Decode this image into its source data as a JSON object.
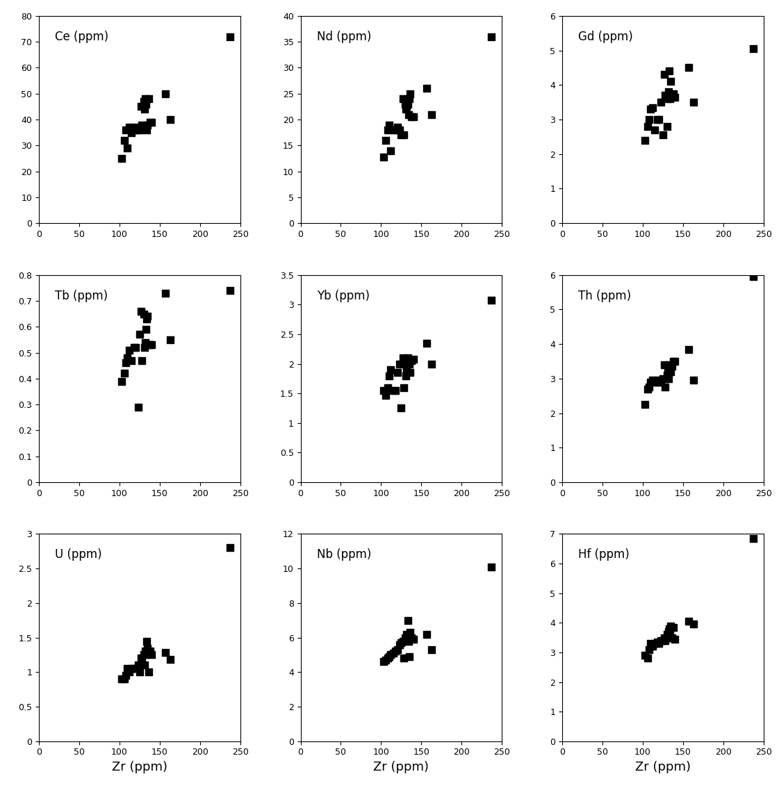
{
  "chart_data": [
    {
      "type": "scatter",
      "title": "Ce (ppm)",
      "color": "#000000",
      "marker": "square",
      "x": [
        103,
        106,
        108,
        110,
        112,
        115,
        118,
        120,
        123,
        125,
        127,
        128,
        130,
        131,
        132,
        133,
        134,
        135,
        136,
        138,
        140,
        157,
        163,
        237
      ],
      "values": [
        25,
        32,
        36,
        29,
        37,
        35,
        36,
        37,
        36,
        36,
        45,
        38,
        47,
        44,
        48,
        46,
        36,
        38,
        48,
        39,
        39,
        50,
        40,
        72
      ],
      "xlim": [
        0,
        250
      ],
      "xticks": [
        0,
        50,
        100,
        150,
        200,
        250
      ],
      "ylim": [
        0,
        80
      ],
      "yticks": [
        0,
        10,
        20,
        30,
        40,
        50,
        60,
        70,
        80
      ]
    },
    {
      "type": "scatter",
      "title": "Nd (ppm)",
      "color": "#000000",
      "marker": "square",
      "x": [
        103,
        106,
        108,
        110,
        112,
        115,
        118,
        120,
        123,
        125,
        127,
        128,
        130,
        131,
        132,
        133,
        134,
        135,
        136,
        138,
        140,
        157,
        163,
        237
      ],
      "values": [
        12.7,
        16,
        18,
        19,
        14,
        18,
        18,
        18.5,
        18,
        17,
        24,
        17,
        23,
        22,
        22.5,
        23,
        21,
        24,
        25,
        20.6,
        20.6,
        26,
        21,
        36
      ],
      "xlim": [
        0,
        250
      ],
      "xticks": [
        0,
        50,
        100,
        150,
        200,
        250
      ],
      "ylim": [
        0,
        40
      ],
      "yticks": [
        0,
        5,
        10,
        15,
        20,
        25,
        30,
        35,
        40
      ]
    },
    {
      "type": "scatter",
      "title": "Gd (ppm)",
      "color": "#000000",
      "marker": "square",
      "x": [
        103,
        106,
        108,
        110,
        112,
        115,
        118,
        120,
        123,
        125,
        127,
        128,
        130,
        131,
        132,
        133,
        134,
        135,
        136,
        138,
        140,
        157,
        163,
        237
      ],
      "values": [
        2.4,
        2.8,
        3.0,
        3.3,
        3.35,
        2.7,
        3.0,
        3.0,
        3.5,
        2.55,
        4.3,
        3.7,
        2.8,
        3.6,
        3.8,
        4.4,
        3.6,
        4.1,
        3.7,
        3.75,
        3.65,
        4.5,
        3.5,
        5.05
      ],
      "xlim": [
        0,
        250
      ],
      "xticks": [
        0,
        50,
        100,
        150,
        200,
        250
      ],
      "ylim": [
        0,
        6
      ],
      "yticks": [
        0,
        1,
        2,
        3,
        4,
        5,
        6
      ]
    },
    {
      "type": "scatter",
      "title": "Tb (ppm)",
      "color": "#000000",
      "marker": "square",
      "x": [
        103,
        106,
        108,
        110,
        112,
        115,
        118,
        120,
        123,
        125,
        127,
        128,
        130,
        131,
        132,
        133,
        134,
        135,
        136,
        138,
        140,
        157,
        163,
        237
      ],
      "values": [
        0.39,
        0.42,
        0.46,
        0.48,
        0.51,
        0.47,
        0.52,
        0.52,
        0.29,
        0.57,
        0.66,
        0.47,
        0.65,
        0.52,
        0.54,
        0.59,
        0.63,
        0.64,
        0.53,
        0.53,
        0.53,
        0.73,
        0.55,
        0.74
      ],
      "xlim": [
        0,
        250
      ],
      "xticks": [
        0,
        50,
        100,
        150,
        200,
        250
      ],
      "ylim": [
        0,
        0.8
      ],
      "yticks": [
        0,
        0.1,
        0.2,
        0.3,
        0.4,
        0.5,
        0.6,
        0.7,
        0.8
      ]
    },
    {
      "type": "scatter",
      "title": "Yb (ppm)",
      "color": "#000000",
      "marker": "square",
      "x": [
        103,
        106,
        108,
        110,
        112,
        115,
        118,
        120,
        123,
        125,
        127,
        128,
        130,
        131,
        132,
        133,
        134,
        135,
        136,
        138,
        140,
        157,
        163,
        237
      ],
      "values": [
        1.55,
        1.47,
        1.6,
        1.8,
        1.9,
        1.55,
        1.55,
        1.85,
        2.0,
        1.25,
        2.1,
        1.6,
        2.0,
        1.8,
        1.9,
        2.1,
        2.05,
        2.0,
        1.85,
        2.05,
        2.08,
        2.35,
        2.0,
        3.08
      ],
      "xlim": [
        0,
        250
      ],
      "xticks": [
        0,
        50,
        100,
        150,
        200,
        250
      ],
      "ylim": [
        0,
        3.5
      ],
      "yticks": [
        0,
        0.5,
        1,
        1.5,
        2,
        2.5,
        3,
        3.5
      ]
    },
    {
      "type": "scatter",
      "title": "Th (ppm)",
      "color": "#000000",
      "marker": "square",
      "x": [
        103,
        106,
        108,
        110,
        112,
        115,
        118,
        120,
        123,
        125,
        127,
        128,
        130,
        131,
        132,
        133,
        134,
        135,
        136,
        138,
        140,
        157,
        163,
        237
      ],
      "values": [
        2.25,
        2.7,
        2.75,
        2.9,
        2.95,
        2.9,
        2.9,
        2.95,
        2.9,
        3.0,
        3.4,
        2.75,
        3.1,
        3.3,
        3.0,
        3.4,
        3.25,
        3.2,
        3.35,
        3.5,
        3.5,
        3.85,
        2.95,
        5.95
      ],
      "xlim": [
        0,
        250
      ],
      "xticks": [
        0,
        50,
        100,
        150,
        200,
        250
      ],
      "ylim": [
        0,
        6
      ],
      "yticks": [
        0,
        1,
        2,
        3,
        4,
        5,
        6
      ]
    },
    {
      "type": "scatter",
      "title": "U (ppm)",
      "xlabel": "Zr (ppm)",
      "color": "#000000",
      "marker": "square",
      "x": [
        103,
        106,
        108,
        110,
        112,
        115,
        118,
        120,
        123,
        125,
        127,
        128,
        130,
        131,
        132,
        133,
        134,
        135,
        136,
        138,
        140,
        157,
        163,
        237
      ],
      "values": [
        0.9,
        0.9,
        0.95,
        1.05,
        1.0,
        1.05,
        1.05,
        1.05,
        1.1,
        1.0,
        1.2,
        1.15,
        1.25,
        1.1,
        1.3,
        1.25,
        1.45,
        1.35,
        1.0,
        1.3,
        1.25,
        1.28,
        1.18,
        2.8
      ],
      "xlim": [
        0,
        250
      ],
      "xticks": [
        0,
        50,
        100,
        150,
        200,
        250
      ],
      "ylim": [
        0,
        3
      ],
      "yticks": [
        0,
        0.5,
        1,
        1.5,
        2,
        2.5,
        3
      ]
    },
    {
      "type": "scatter",
      "title": "Nb (ppm)",
      "xlabel": "Zr (ppm)",
      "color": "#000000",
      "marker": "square",
      "x": [
        103,
        106,
        108,
        110,
        112,
        115,
        118,
        120,
        123,
        125,
        127,
        128,
        130,
        131,
        132,
        133,
        134,
        135,
        136,
        138,
        140,
        157,
        163,
        237
      ],
      "values": [
        4.6,
        4.7,
        4.8,
        4.9,
        5.0,
        5.1,
        5.2,
        5.3,
        5.6,
        5.7,
        5.8,
        4.8,
        6.0,
        5.9,
        6.2,
        7.0,
        5.8,
        4.9,
        6.3,
        6.0,
        5.9,
        6.2,
        5.3,
        10.1
      ],
      "xlim": [
        0,
        250
      ],
      "xticks": [
        0,
        50,
        100,
        150,
        200,
        250
      ],
      "ylim": [
        0,
        12
      ],
      "yticks": [
        0,
        2,
        4,
        6,
        8,
        10,
        12
      ]
    },
    {
      "type": "scatter",
      "title": "Hf (ppm)",
      "xlabel": "Zr (ppm)",
      "color": "#000000",
      "marker": "square",
      "x": [
        103,
        106,
        108,
        110,
        112,
        115,
        118,
        120,
        123,
        125,
        127,
        128,
        130,
        131,
        132,
        133,
        134,
        135,
        136,
        138,
        140,
        157,
        163,
        237
      ],
      "values": [
        2.9,
        2.8,
        3.1,
        3.3,
        3.2,
        3.3,
        3.35,
        3.3,
        3.4,
        3.4,
        3.5,
        3.4,
        3.6,
        3.5,
        3.7,
        3.8,
        3.6,
        3.9,
        3.5,
        3.85,
        3.45,
        4.05,
        3.95,
        6.85
      ],
      "xlim": [
        0,
        250
      ],
      "xticks": [
        0,
        50,
        100,
        150,
        200,
        250
      ],
      "ylim": [
        0,
        7
      ],
      "yticks": [
        0,
        1,
        2,
        3,
        4,
        5,
        6,
        7
      ]
    }
  ]
}
